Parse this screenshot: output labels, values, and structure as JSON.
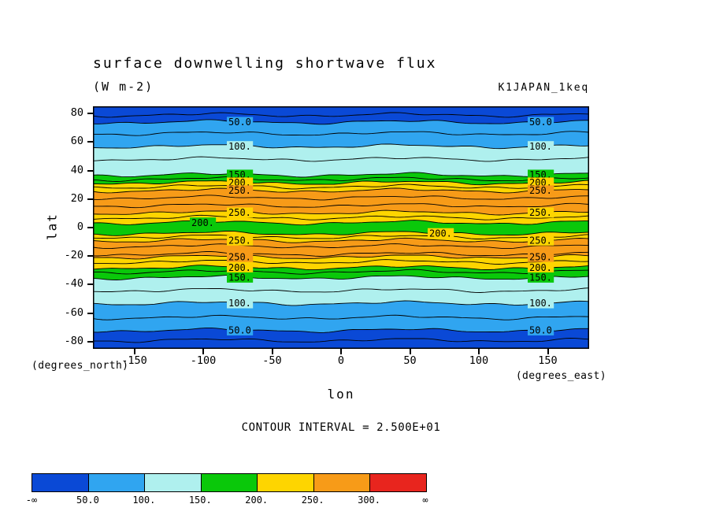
{
  "chart_data": {
    "type": "contour",
    "title": "surface downwelling shortwave flux",
    "units_label": "(W m-2)",
    "dataset_label": "K1JAPAN_1keq",
    "xlabel": "lon",
    "ylabel": "lat",
    "x_axis_unit": "(degrees_east)",
    "y_axis_unit": "(degrees_north)",
    "contour_interval_label": "CONTOUR INTERVAL = 2.500E+01",
    "contour_interval": 25,
    "xlim": [
      -180,
      180
    ],
    "ylim": [
      -85,
      85
    ],
    "xticks": [
      -150,
      -100,
      -50,
      0,
      50,
      100,
      150
    ],
    "yticks": [
      80,
      60,
      40,
      20,
      0,
      -20,
      -40,
      -60,
      -80
    ],
    "palette": {
      "blue1": "#0a49d6",
      "blue2": "#30a5f0",
      "cyan": "#aff0ee",
      "green": "#0ac80a",
      "yellow": "#fed500",
      "orange": "#f79b18",
      "red": "#e8251e"
    },
    "boundaries": [
      {
        "level": 25,
        "lat": 79.0
      },
      {
        "level": 50,
        "lat": 74.0,
        "label": "50.0",
        "label_xs": [
          172,
          554
        ],
        "label_bg": "blue2"
      },
      {
        "level": 75,
        "lat": 66.0
      },
      {
        "level": 100,
        "lat": 57.0,
        "label": "100.",
        "label_xs": [
          172,
          554
        ],
        "label_bg": "cyan"
      },
      {
        "level": 125,
        "lat": 48.0
      },
      {
        "level": 150,
        "lat": 37.0,
        "label": "150.",
        "label_xs": [
          172,
          554
        ],
        "label_bg": "green"
      },
      {
        "level": 175,
        "lat": 34.0
      },
      {
        "level": 200,
        "lat": 31.5,
        "label": "200.",
        "label_xs": [
          172,
          554
        ],
        "label_bg": "yellow"
      },
      {
        "level": 225,
        "lat": 28.7
      },
      {
        "level": 250,
        "lat": 26.0,
        "label": "250.",
        "label_xs": [
          172,
          554
        ],
        "label_bg": "orange"
      },
      {
        "level": 275,
        "lat": 21.0
      },
      {
        "level": 275,
        "lat": 15.5
      },
      {
        "level": 250,
        "lat": 10.5,
        "label": "250.",
        "label_xs": [
          172,
          554
        ],
        "label_bg": "yellow"
      },
      {
        "level": 225,
        "lat": 7.0
      },
      {
        "level": 200,
        "lat": 3.5,
        "label": "200.",
        "label_xs": [
          125
        ],
        "label_bg": "green"
      },
      {
        "level": 200,
        "lat": -4.0,
        "label": "200.",
        "label_xs": [
          427
        ],
        "label_bg": "yellow"
      },
      {
        "level": 225,
        "lat": -6.5
      },
      {
        "level": 250,
        "lat": -9.0,
        "label": "250.",
        "label_xs": [
          172,
          554
        ],
        "label_bg": "yellow"
      },
      {
        "level": 275,
        "lat": -13.0
      },
      {
        "level": 275,
        "lat": -18.5
      },
      {
        "level": 250,
        "lat": -20.5,
        "label": "250.",
        "label_xs": [
          172,
          554
        ],
        "label_bg": "orange"
      },
      {
        "level": 225,
        "lat": -24.0
      },
      {
        "level": 200,
        "lat": -28.0,
        "label": "200.",
        "label_xs": [
          172,
          554
        ],
        "label_bg": "yellow"
      },
      {
        "level": 175,
        "lat": -31.0
      },
      {
        "level": 150,
        "lat": -35.0,
        "label": "150.",
        "label_xs": [
          172,
          554
        ],
        "label_bg": "green"
      },
      {
        "level": 125,
        "lat": -44.0
      },
      {
        "level": 100,
        "lat": -53.0,
        "label": "100.",
        "label_xs": [
          172,
          554
        ],
        "label_bg": "cyan"
      },
      {
        "level": 75,
        "lat": -63.0
      },
      {
        "level": 50,
        "lat": -72.0,
        "label": "50.0",
        "label_xs": [
          172,
          554
        ],
        "label_bg": "blue2"
      },
      {
        "level": 25,
        "lat": -79.0
      }
    ],
    "band_colors": [
      "blue1",
      "blue1",
      "blue2",
      "blue2",
      "cyan",
      "cyan",
      "green",
      "green",
      "yellow",
      "yellow",
      "orange",
      "orange",
      "orange",
      "yellow",
      "yellow",
      "green",
      "yellow",
      "yellow",
      "orange",
      "orange",
      "orange",
      "yellow",
      "yellow",
      "green",
      "green",
      "cyan",
      "cyan",
      "blue2",
      "blue2",
      "blue1",
      "blue1"
    ],
    "colorbar": {
      "tick_labels": [
        "-∞",
        "50.0",
        "100.",
        "150.",
        "200.",
        "250.",
        "300.",
        "∞"
      ],
      "segment_colors": [
        "blue1",
        "blue2",
        "cyan",
        "green",
        "yellow",
        "orange",
        "red"
      ]
    }
  }
}
